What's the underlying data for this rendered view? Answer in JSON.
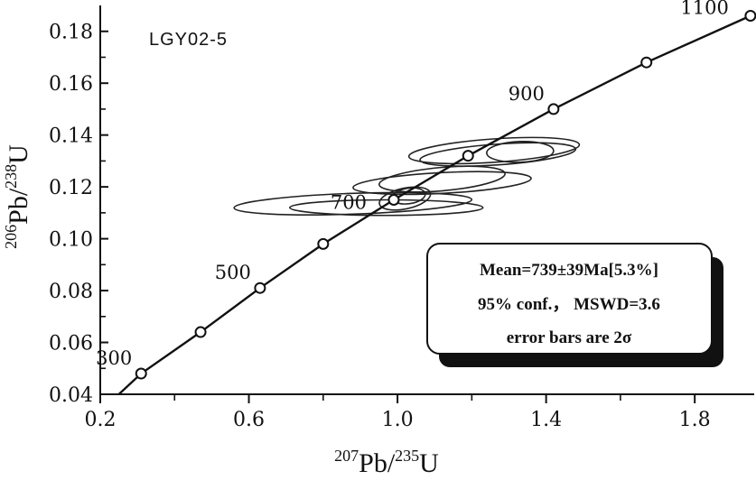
{
  "chart_data": {
    "type": "concordia",
    "sample_label": "LGY02-5",
    "xlabel": {
      "sup": "207",
      "base": "Pb/",
      "sup2": "235",
      "end": "U"
    },
    "ylabel": {
      "sup": "206",
      "base": "Pb/",
      "sup2": "238",
      "end": "U"
    },
    "xlim": [
      0.2,
      1.96
    ],
    "ylim": [
      0.04,
      0.19
    ],
    "x_ticks": [
      0.2,
      0.6,
      1.0,
      1.4,
      1.8
    ],
    "x_tick_labels": [
      "0.2",
      "0.6",
      "1.0",
      "1.4",
      "1.8"
    ],
    "y_ticks": [
      0.04,
      0.06,
      0.08,
      0.1,
      0.12,
      0.14,
      0.16,
      0.18
    ],
    "y_tick_labels": [
      "0.04",
      "0.06",
      "0.08",
      "0.10",
      "0.12",
      "0.14",
      "0.16",
      "0.18"
    ],
    "concordia_points": [
      {
        "age": 300,
        "x": 0.31,
        "y": 0.048,
        "label": "300"
      },
      {
        "age": 400,
        "x": 0.47,
        "y": 0.064,
        "label": ""
      },
      {
        "age": 500,
        "x": 0.63,
        "y": 0.081,
        "label": "500"
      },
      {
        "age": 600,
        "x": 0.8,
        "y": 0.098,
        "label": ""
      },
      {
        "age": 700,
        "x": 0.99,
        "y": 0.115,
        "label": "700"
      },
      {
        "age": 800,
        "x": 1.19,
        "y": 0.132,
        "label": ""
      },
      {
        "age": 900,
        "x": 1.42,
        "y": 0.15,
        "label": "900"
      },
      {
        "age": 1000,
        "x": 1.67,
        "y": 0.168,
        "label": ""
      },
      {
        "age": 1100,
        "x": 1.95,
        "y": 0.186,
        "label": "1100"
      }
    ],
    "ellipses": [
      {
        "cx": 0.88,
        "cy": 0.1135,
        "rx": 0.32,
        "ry": 0.004,
        "angle_deg": 2
      },
      {
        "cx": 0.97,
        "cy": 0.112,
        "rx": 0.26,
        "ry": 0.003,
        "angle_deg": 0
      },
      {
        "cx": 1.02,
        "cy": 0.1155,
        "rx": 0.07,
        "ry": 0.004,
        "angle_deg": 12
      },
      {
        "cx": 1.03,
        "cy": 0.1165,
        "rx": 0.045,
        "ry": 0.003,
        "angle_deg": 8
      },
      {
        "cx": 1.12,
        "cy": 0.1215,
        "rx": 0.24,
        "ry": 0.004,
        "angle_deg": 3
      },
      {
        "cx": 1.12,
        "cy": 0.123,
        "rx": 0.17,
        "ry": 0.0045,
        "angle_deg": 5
      },
      {
        "cx": 1.26,
        "cy": 0.134,
        "rx": 0.23,
        "ry": 0.0045,
        "angle_deg": 4
      },
      {
        "cx": 1.27,
        "cy": 0.1325,
        "rx": 0.21,
        "ry": 0.004,
        "angle_deg": 4
      },
      {
        "cx": 1.33,
        "cy": 0.1335,
        "rx": 0.09,
        "ry": 0.004,
        "angle_deg": 2
      }
    ],
    "stats": {
      "line1": "Mean=739±39Ma[5.3%]",
      "line2": "95% conf.，  MSWD=3.6",
      "line3": "error bars  are 2σ"
    },
    "grid": false,
    "legend_placement": "bottom-right"
  }
}
